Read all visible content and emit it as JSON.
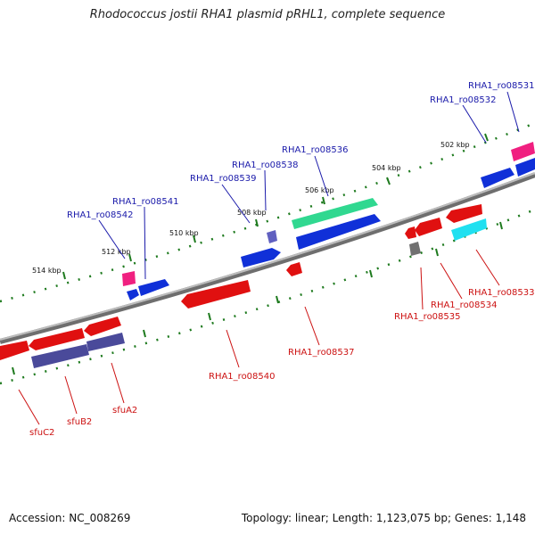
{
  "title": "Rhodococcus jostii RHA1 plasmid pRHL1, complete sequence",
  "footer": {
    "accession": "Accession: NC_008269",
    "summary": "Topology: linear; Length: 1,123,075 bp; Genes: 1,148"
  },
  "ruler_labels": [
    "502 kbp",
    "504 kbp",
    "506 kbp",
    "508 kbp",
    "510 kbp",
    "512 kbp",
    "514 kbp"
  ],
  "genes_forward": [
    "RHA1_ro08531",
    "RHA1_ro08532",
    "RHA1_ro08536",
    "RHA1_ro08538",
    "RHA1_ro08539",
    "RHA1_ro08541",
    "RHA1_ro08542"
  ],
  "genes_reverse": [
    "RHA1_ro08533",
    "RHA1_ro08534",
    "RHA1_ro08535",
    "RHA1_ro08537",
    "RHA1_ro08540",
    "sfuA2",
    "sfuB2",
    "sfuC2"
  ],
  "colors": {
    "forward_label": "#1a1aaa",
    "reverse_label": "#cc1111",
    "ruler_tick": "#1e7a1e",
    "backbone": "#8a8a8a",
    "gene_blue": "#1030d8",
    "gene_red": "#e01010",
    "gene_green": "#30d890",
    "gene_cyan": "#20e0f0",
    "gene_magenta": "#f02080",
    "gene_slate": "#4a4a9a",
    "gene_gray": "#707070"
  }
}
